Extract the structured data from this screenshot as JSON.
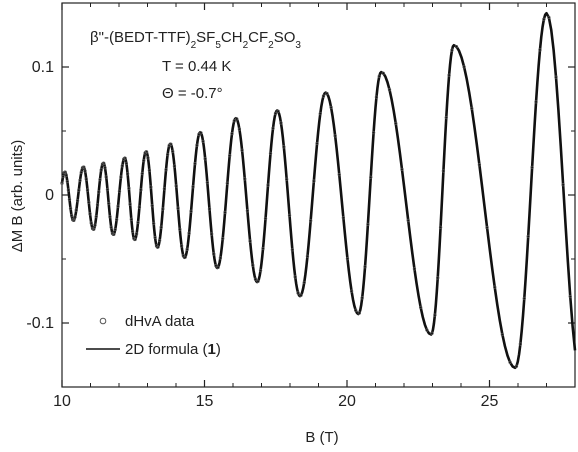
{
  "chart_data": {
    "type": "line",
    "title": "",
    "xlabel": "B (T)",
    "ylabel": "ΔM B (arb. units)",
    "xlim": [
      10,
      28
    ],
    "ylim": [
      -0.15,
      0.15
    ],
    "x_ticks": [
      "10",
      "15",
      "20",
      "25"
    ],
    "y_ticks": [
      "-0.1",
      "0",
      "0.1"
    ],
    "x_tick_values": [
      10,
      15,
      20,
      25
    ],
    "y_tick_values": [
      -0.1,
      0,
      0.1
    ],
    "annotations": {
      "compound_prefix": "β\"-(BEDT-TTF)",
      "compound_s1": "2",
      "compound_mid1": "SF",
      "compound_s2": "5",
      "compound_mid2": "CH",
      "compound_s3": "2",
      "compound_mid3": "CF",
      "compound_s4": "2",
      "compound_mid4": "SO",
      "compound_s5": "3",
      "temperature": "T = 0.44 K",
      "angle": "Θ = -0.7°"
    },
    "legend": {
      "position": "lower-left",
      "marker_label": "dHvA data",
      "line_label_prefix": "2D formula (",
      "line_label_ref": "1",
      "line_label_suffix": ")"
    },
    "series": [
      {
        "name": "dHvA data",
        "style": "markers",
        "peaks": [
          {
            "x": 10.1,
            "y": 0.018
          },
          {
            "x": 10.75,
            "y": 0.022
          },
          {
            "x": 11.45,
            "y": 0.025
          },
          {
            "x": 12.2,
            "y": 0.029
          },
          {
            "x": 12.95,
            "y": 0.034
          },
          {
            "x": 13.8,
            "y": 0.04
          },
          {
            "x": 14.85,
            "y": 0.049
          },
          {
            "x": 16.1,
            "y": 0.06
          },
          {
            "x": 17.55,
            "y": 0.066
          },
          {
            "x": 19.25,
            "y": 0.08
          },
          {
            "x": 21.2,
            "y": 0.096
          },
          {
            "x": 23.75,
            "y": 0.117
          },
          {
            "x": 27.0,
            "y": 0.142
          }
        ],
        "troughs": [
          {
            "x": 10.4,
            "y": -0.02
          },
          {
            "x": 11.1,
            "y": -0.027
          },
          {
            "x": 11.8,
            "y": -0.031
          },
          {
            "x": 12.55,
            "y": -0.035
          },
          {
            "x": 13.35,
            "y": -0.041
          },
          {
            "x": 14.3,
            "y": -0.049
          },
          {
            "x": 15.45,
            "y": -0.057
          },
          {
            "x": 16.85,
            "y": -0.068
          },
          {
            "x": 18.35,
            "y": -0.079
          },
          {
            "x": 20.4,
            "y": -0.093
          },
          {
            "x": 22.95,
            "y": -0.109
          },
          {
            "x": 25.9,
            "y": -0.135
          }
        ]
      },
      {
        "name": "2D formula (1)",
        "style": "line",
        "same_as": "dHvA data"
      }
    ],
    "colors": {
      "line": "#111111",
      "marker": "#555555",
      "axis": "#222222"
    }
  }
}
